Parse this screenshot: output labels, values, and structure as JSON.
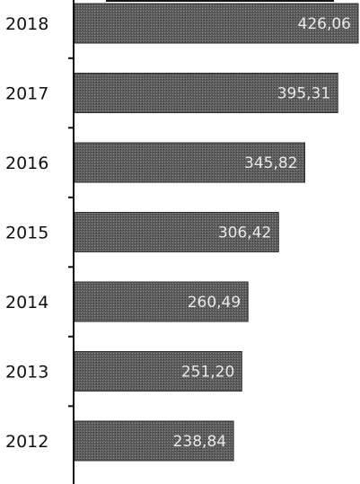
{
  "chart_data": {
    "type": "bar",
    "orientation": "horizontal",
    "categories": [
      "2018",
      "2017",
      "2016",
      "2015",
      "2014",
      "2013",
      "2012"
    ],
    "values": [
      426.06,
      395.31,
      345.82,
      306.42,
      260.49,
      251.2,
      238.84
    ],
    "data_labels": [
      "426,06",
      "395,31",
      "345,82",
      "306,42",
      "260,49",
      "251,20",
      "238,84"
    ],
    "title": "",
    "xlabel": "",
    "ylabel": "",
    "grid": false,
    "legend": "none",
    "colors": {
      "bar": "#5a5a5a",
      "bar_edge": "#2e2e2e",
      "axis": "#111111",
      "label": "#e8e8e8"
    }
  }
}
